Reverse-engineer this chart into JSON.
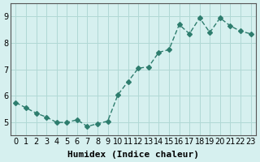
{
  "x": [
    0,
    1,
    2,
    3,
    4,
    5,
    6,
    7,
    8,
    9,
    10,
    11,
    12,
    13,
    14,
    15,
    16,
    17,
    18,
    19,
    20,
    21,
    22,
    23
  ],
  "y": [
    5.75,
    5.55,
    5.35,
    5.2,
    5.0,
    5.0,
    5.1,
    4.85,
    4.95,
    5.05,
    6.05,
    6.55,
    7.05,
    7.1,
    7.65,
    7.75,
    8.7,
    8.35,
    8.95,
    8.4,
    8.95,
    8.65,
    8.45,
    8.35
  ],
  "line_color": "#2e7d6e",
  "marker": "D",
  "marker_size": 3,
  "bg_color": "#d6f0ef",
  "grid_color": "#b0d8d5",
  "xlabel": "Humidex (Indice chaleur)",
  "ylabel": "",
  "title": "",
  "xlim": [
    -0.5,
    23.5
  ],
  "ylim": [
    4.5,
    9.5
  ],
  "yticks": [
    5,
    6,
    7,
    8,
    9
  ],
  "xticks": [
    0,
    1,
    2,
    3,
    4,
    5,
    6,
    7,
    8,
    9,
    10,
    11,
    12,
    13,
    14,
    15,
    16,
    17,
    18,
    19,
    20,
    21,
    22,
    23
  ],
  "xtick_labels": [
    "0",
    "1",
    "2",
    "3",
    "4",
    "5",
    "6",
    "7",
    "8",
    "9",
    "10",
    "11",
    "12",
    "13",
    "14",
    "15",
    "16",
    "17",
    "18",
    "19",
    "20",
    "21",
    "22",
    "23"
  ],
  "tick_fontsize": 7,
  "xlabel_fontsize": 8,
  "axis_color": "#555555"
}
